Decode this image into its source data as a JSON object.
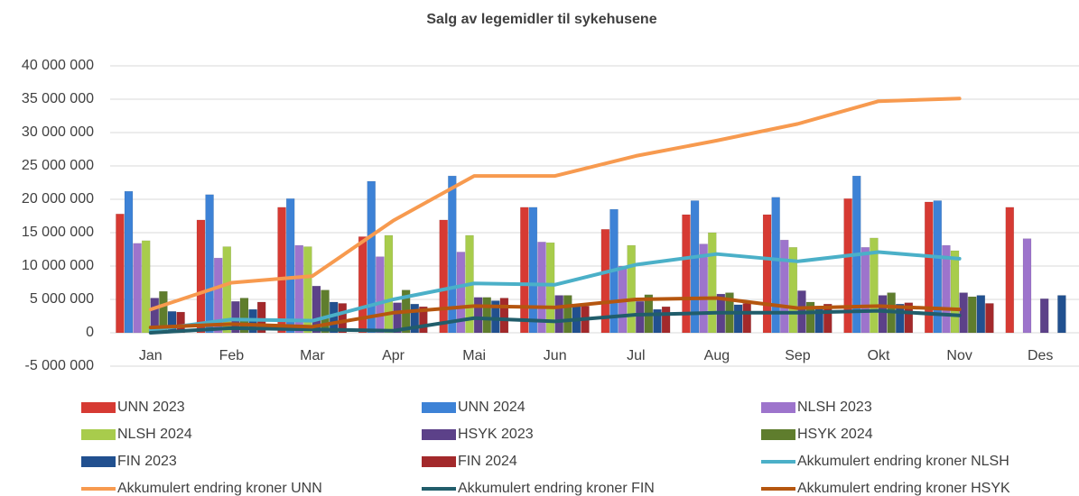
{
  "chart_data": {
    "type": "bar",
    "title": "Salg av legemidler til sykehusene",
    "categories": [
      "Jan",
      "Feb",
      "Mar",
      "Apr",
      "Mai",
      "Jun",
      "Jul",
      "Aug",
      "Sep",
      "Okt",
      "Nov",
      "Des"
    ],
    "ylim": [
      -5000000,
      40000000
    ],
    "yticks": [
      {
        "value": -5000000,
        "label": "-5 000 000"
      },
      0,
      {
        "value": 5000000,
        "label": "5 000 000"
      },
      {
        "value": 10000000,
        "label": "10 000 000"
      },
      {
        "value": 15000000,
        "label": "15 000 000"
      },
      {
        "value": 20000000,
        "label": "20 000 000"
      },
      {
        "value": 25000000,
        "label": "25 000 000"
      },
      {
        "value": 30000000,
        "label": "30 000 000"
      },
      {
        "value": 35000000,
        "label": "35 000 000"
      },
      {
        "value": 40000000,
        "label": "40 000 000"
      }
    ],
    "grid": true,
    "legend": "bottom",
    "series": [
      {
        "name": "UNN 2023",
        "type": "bar",
        "color": "#d63a33",
        "values": [
          17800000,
          16900000,
          18800000,
          14400000,
          16900000,
          18800000,
          15500000,
          17700000,
          17700000,
          20100000,
          19600000,
          18800000
        ]
      },
      {
        "name": "UNN 2024",
        "type": "bar",
        "color": "#3d82d6",
        "values": [
          21200000,
          20700000,
          20100000,
          22700000,
          23500000,
          18800000,
          18500000,
          19800000,
          20300000,
          23500000,
          19800000,
          null
        ]
      },
      {
        "name": "NLSH 2023",
        "type": "bar",
        "color": "#9d74cc",
        "values": [
          13400000,
          11200000,
          13100000,
          11400000,
          12100000,
          13600000,
          10000000,
          13300000,
          13900000,
          12800000,
          13100000,
          14100000
        ]
      },
      {
        "name": "NLSH 2024",
        "type": "bar",
        "color": "#a8cc4c",
        "values": [
          13800000,
          12900000,
          12900000,
          14600000,
          14600000,
          13500000,
          13100000,
          15000000,
          12800000,
          14200000,
          12300000,
          null
        ]
      },
      {
        "name": "HSYK 2023",
        "type": "bar",
        "color": "#5c4189",
        "values": [
          5200000,
          4700000,
          7000000,
          4500000,
          5300000,
          5600000,
          4700000,
          5800000,
          6300000,
          5600000,
          6000000,
          5100000
        ]
      },
      {
        "name": "HSYK 2024",
        "type": "bar",
        "color": "#5f7d2d",
        "values": [
          6200000,
          5200000,
          6400000,
          6400000,
          5300000,
          5600000,
          5700000,
          6000000,
          4600000,
          6000000,
          5400000,
          null
        ]
      },
      {
        "name": "FIN 2023",
        "type": "bar",
        "color": "#21508f",
        "values": [
          3200000,
          3500000,
          4600000,
          4300000,
          4800000,
          4000000,
          3500000,
          4200000,
          4000000,
          4300000,
          5600000,
          5600000
        ]
      },
      {
        "name": "FIN 2024",
        "type": "bar",
        "color": "#a3292b",
        "values": [
          3100000,
          4600000,
          4400000,
          3900000,
          5200000,
          4000000,
          3900000,
          4400000,
          4300000,
          4500000,
          4400000,
          null
        ]
      },
      {
        "name": "Akkumulert endring kroner NLSH",
        "type": "line",
        "color": "#4bb0c8",
        "values": [
          400000,
          2000000,
          1800000,
          5000000,
          7400000,
          7200000,
          10200000,
          11800000,
          10700000,
          12100000,
          11100000,
          null
        ]
      },
      {
        "name": "Akkumulert endring kroner UNN",
        "type": "line",
        "color": "#f79a4f",
        "values": [
          3500000,
          7500000,
          8500000,
          16800000,
          23500000,
          23500000,
          26500000,
          28800000,
          31300000,
          34700000,
          35100000,
          null
        ]
      },
      {
        "name": "Akkumulert endring kroner FIN",
        "type": "line",
        "color": "#215d6b",
        "values": [
          0,
          700000,
          500000,
          300000,
          2200000,
          1700000,
          2700000,
          3000000,
          3000000,
          3300000,
          2600000,
          null
        ]
      },
      {
        "name": "Akkumulert endring kroner HSYK",
        "type": "line",
        "color": "#b5560f",
        "values": [
          800000,
          1300000,
          900000,
          3000000,
          4000000,
          3800000,
          5000000,
          5200000,
          3700000,
          4000000,
          3500000,
          null
        ]
      }
    ]
  }
}
